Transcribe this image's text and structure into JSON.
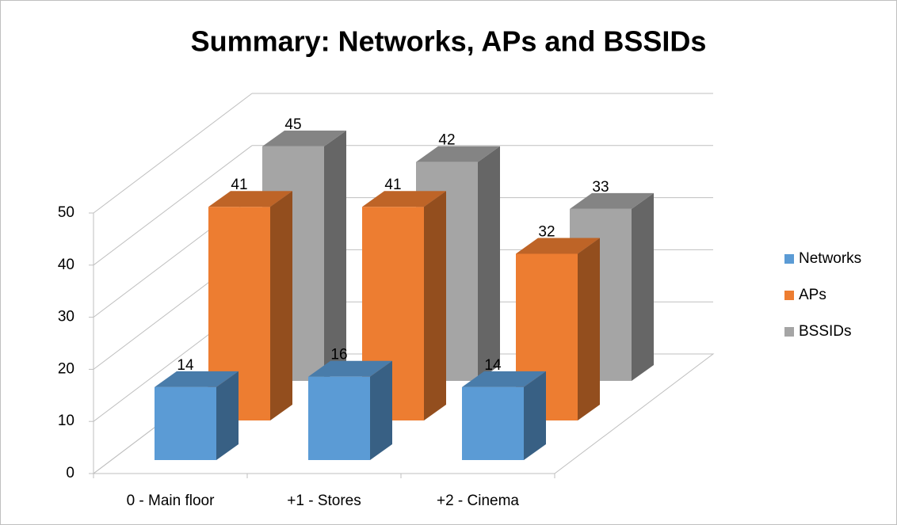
{
  "chart_data": {
    "type": "bar3d",
    "title": "Summary: Networks, APs and BSSIDs",
    "categories": [
      "0 - Main floor",
      "+1 - Stores",
      "+2 - Cinema"
    ],
    "series": [
      {
        "name": "Networks",
        "color": "#5b9bd5",
        "values": [
          14,
          16,
          14
        ]
      },
      {
        "name": "APs",
        "color": "#ed7d31",
        "values": [
          41,
          41,
          32
        ]
      },
      {
        "name": "BSSIDs",
        "color": "#a5a5a5",
        "values": [
          45,
          42,
          33
        ]
      }
    ],
    "ylim": [
      0,
      50
    ],
    "yticks": [
      0,
      10,
      20,
      30,
      40,
      50
    ],
    "grid": true,
    "legend": "right"
  }
}
